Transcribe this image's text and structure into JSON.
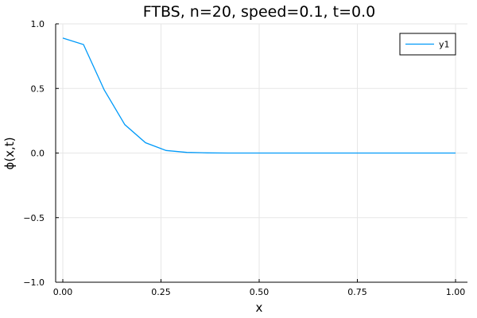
{
  "chart_data": {
    "type": "line",
    "title": "FTBS, n=20, speed=0.1, t=0.0",
    "xlabel": "x",
    "ylabel": "ϕ(x,t)",
    "xlim": [
      0.0,
      1.0
    ],
    "ylim": [
      -1.0,
      1.0
    ],
    "xticks": [
      "0.00",
      "0.25",
      "0.50",
      "0.75",
      "1.00"
    ],
    "xtick_values": [
      0.0,
      0.25,
      0.5,
      0.75,
      1.0
    ],
    "yticks": [
      "−1.0",
      "−0.5",
      "0.0",
      "0.5",
      "1.0"
    ],
    "ytick_values": [
      -1.0,
      -0.5,
      0.0,
      0.5,
      1.0
    ],
    "grid": true,
    "legend_position": "top-right",
    "series": [
      {
        "name": "y1",
        "color": "#009af9",
        "x": [
          0.0,
          0.0526,
          0.1053,
          0.1579,
          0.2105,
          0.2632,
          0.3158,
          0.3684,
          0.4211,
          0.4737,
          0.5263,
          0.5789,
          0.6316,
          0.6842,
          0.7368,
          0.7895,
          0.8421,
          0.8947,
          0.9474,
          1.0
        ],
        "y": [
          0.89,
          0.84,
          0.49,
          0.22,
          0.08,
          0.02,
          0.005,
          0.001,
          0.0,
          0.0,
          0.0,
          0.0,
          0.0,
          0.0,
          0.0,
          0.0,
          0.0,
          0.0,
          0.0,
          0.0
        ]
      }
    ]
  }
}
